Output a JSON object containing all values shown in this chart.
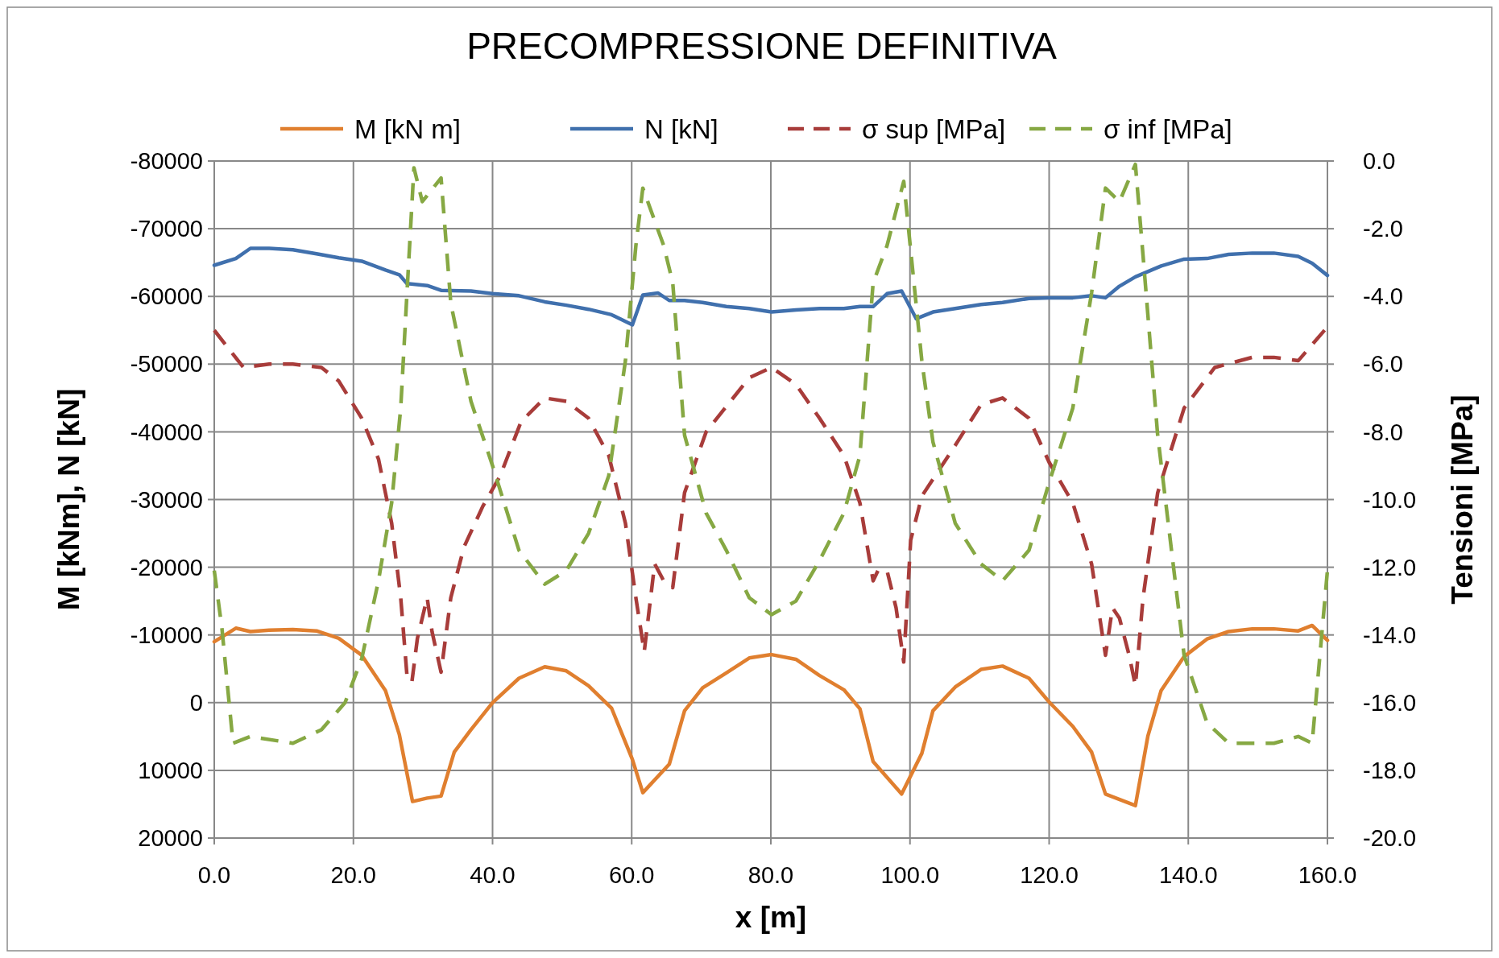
{
  "chart_data": {
    "type": "line",
    "title": "PRECOMPRESSIONE DEFINITIVA",
    "xlabel": "x [m]",
    "ylabel": "M [kNm], N [kN]",
    "y2label": "Tensioni [MPa]",
    "xlim": [
      0,
      160
    ],
    "xticks": [
      {
        "value": 0,
        "label": "0.0"
      },
      {
        "value": 20,
        "label": "20.0"
      },
      {
        "value": 40,
        "label": "40.0"
      },
      {
        "value": 60,
        "label": "60.0"
      },
      {
        "value": 80,
        "label": "80.0"
      },
      {
        "value": 100,
        "label": "100.0"
      },
      {
        "value": 120,
        "label": "120.0"
      },
      {
        "value": 140,
        "label": "140.0"
      },
      {
        "value": 160,
        "label": "160.0"
      }
    ],
    "ylim": [
      20000,
      -80000
    ],
    "yticks": [
      -80000,
      -70000,
      -60000,
      -50000,
      -40000,
      -30000,
      -20000,
      -10000,
      0,
      10000,
      20000
    ],
    "y2lim": [
      -20,
      0
    ],
    "y2ticks": [
      {
        "value": 0,
        "label": "0.0"
      },
      {
        "value": -2,
        "label": "-2.0"
      },
      {
        "value": -4,
        "label": "-4.0"
      },
      {
        "value": -6,
        "label": "-6.0"
      },
      {
        "value": -8,
        "label": "-8.0"
      },
      {
        "value": -10,
        "label": "-10.0"
      },
      {
        "value": -12,
        "label": "-12.0"
      },
      {
        "value": -14,
        "label": "-14.0"
      },
      {
        "value": -16,
        "label": "-16.0"
      },
      {
        "value": -18,
        "label": "-18.0"
      },
      {
        "value": -20,
        "label": "-20.0"
      }
    ],
    "grid": true,
    "legend": "top",
    "marker": "none",
    "series": [
      {
        "name": "M [kN m]",
        "color": "#e07f2f",
        "line_style": "solid",
        "x": [
          0,
          3.1,
          5.2,
          7.9,
          11.3,
          14.7,
          17.9,
          21.2,
          24.6,
          26.6,
          28.5,
          30.6,
          32.6,
          34.5,
          36.9,
          40,
          43.8,
          47.5,
          50.6,
          53.8,
          57.1,
          60.1,
          61.6,
          65.4,
          67.6,
          70.2,
          73.6,
          76.9,
          80.1,
          83.6,
          87,
          90.5,
          92.8,
          94.7,
          98.8,
          101.7,
          103.3,
          106.5,
          110.2,
          113.3,
          117.1,
          120,
          123.4,
          126.1,
          128.1,
          132.4,
          134.2,
          136.1,
          139.4,
          142.7,
          145.8,
          149.2,
          152.3,
          155.8,
          157.8,
          160
        ],
        "values": [
          -9000,
          -11000,
          -10500,
          -10700,
          -10800,
          -10600,
          -9500,
          -7000,
          -1800,
          4700,
          14600,
          14100,
          13800,
          7300,
          4000,
          0,
          -3600,
          -5300,
          -4700,
          -2500,
          800,
          8400,
          13300,
          9100,
          1200,
          -2200,
          -4400,
          -6600,
          -7100,
          -6400,
          -4000,
          -1900,
          900,
          8700,
          13500,
          7500,
          1200,
          -2300,
          -4900,
          -5400,
          -3600,
          -100,
          3500,
          7300,
          13500,
          15200,
          4900,
          -1800,
          -6800,
          -9400,
          -10500,
          -10900,
          -10900,
          -10600,
          -11400,
          -9200
        ]
      },
      {
        "name": "N [kN]",
        "color": "#4070ad",
        "line_style": "solid",
        "x": [
          0,
          3.1,
          5.2,
          7.9,
          11.3,
          14.7,
          17.9,
          21.2,
          24.6,
          26.6,
          27.7,
          30.6,
          32.6,
          36.9,
          40,
          43.8,
          47.5,
          50.6,
          53.8,
          57.1,
          60.1,
          61.6,
          63.8,
          65.4,
          67.6,
          70.2,
          73.6,
          76.9,
          80.1,
          83.6,
          87,
          90.5,
          92.8,
          94.7,
          96.7,
          98.8,
          100.9,
          103.3,
          106.5,
          110.2,
          113.3,
          117.1,
          120,
          123.4,
          126.1,
          128.1,
          130.1,
          132.4,
          136.1,
          139.4,
          142.7,
          145.8,
          149.2,
          152.3,
          155.8,
          157.8,
          160
        ],
        "values": [
          -64600,
          -65600,
          -67100,
          -67100,
          -66900,
          -66300,
          -65700,
          -65200,
          -63900,
          -63200,
          -61900,
          -61600,
          -60900,
          -60800,
          -60400,
          -60100,
          -59200,
          -58700,
          -58100,
          -57300,
          -55800,
          -60200,
          -60500,
          -59400,
          -59400,
          -59100,
          -58500,
          -58200,
          -57700,
          -58000,
          -58200,
          -58200,
          -58500,
          -58500,
          -60400,
          -60800,
          -56700,
          -57700,
          -58200,
          -58800,
          -59100,
          -59700,
          -59800,
          -59800,
          -60100,
          -59800,
          -61500,
          -62900,
          -64500,
          -65500,
          -65600,
          -66200,
          -66400,
          -66400,
          -65900,
          -64900,
          -63100
        ]
      },
      {
        "name": "σ sup [MPa]",
        "color": "#a83c3a",
        "line_style": "dashed",
        "axis": "y2",
        "x": [
          0,
          4.2,
          7.9,
          11.3,
          15.4,
          17.9,
          21.2,
          23.6,
          25.5,
          26.8,
          27.7,
          28.4,
          29.2,
          30.6,
          31.3,
          32.6,
          34.0,
          35.9,
          38.6,
          41.1,
          44.1,
          47.5,
          50.6,
          53.8,
          56.7,
          59.1,
          60.6,
          61.8,
          63.3,
          64.6,
          65.9,
          67.6,
          70.7,
          76.9,
          80.1,
          83.6,
          87,
          90.5,
          92.8,
          94.7,
          95.4,
          96.7,
          98.0,
          99.1,
          100.1,
          101.7,
          106.5,
          110.2,
          113.3,
          117.1,
          120,
          123.4,
          126.1,
          128.1,
          129.1,
          130.1,
          131.5,
          132.4,
          133.5,
          135.6,
          139.4,
          143.8,
          149.2,
          152.3,
          155.8,
          160
        ],
        "values": [
          -5.0,
          -6.1,
          -6.0,
          -6.0,
          -6.1,
          -6.5,
          -7.6,
          -8.8,
          -10.7,
          -12.9,
          -15.2,
          -15.4,
          -14.1,
          -12.9,
          -13.9,
          -15.1,
          -12.9,
          -11.4,
          -10.2,
          -9.3,
          -7.7,
          -7.0,
          -7.1,
          -7.6,
          -8.7,
          -10.7,
          -12.9,
          -14.5,
          -11.9,
          -12.4,
          -12.6,
          -9.8,
          -8.0,
          -6.4,
          -6.1,
          -6.6,
          -7.6,
          -8.7,
          -10.1,
          -12.4,
          -12.1,
          -12.1,
          -13.2,
          -14.8,
          -11.2,
          -9.9,
          -8.4,
          -7.2,
          -7.0,
          -7.6,
          -8.9,
          -10.1,
          -11.9,
          -14.6,
          -13.2,
          -13.5,
          -14.6,
          -15.5,
          -12.9,
          -9.8,
          -7.3,
          -6.1,
          -5.8,
          -5.8,
          -5.9,
          -4.9
        ]
      },
      {
        "name": "σ inf [MPa]",
        "color": "#86a843",
        "line_style": "dashed",
        "axis": "y2",
        "x": [
          0,
          1.1,
          2.7,
          5.2,
          11.3,
          15.4,
          18.8,
          21.2,
          23.6,
          25.5,
          26.8,
          27.7,
          28.7,
          29.9,
          32.6,
          34.0,
          36.9,
          40,
          43.8,
          47.5,
          50.6,
          53.8,
          56.7,
          59.1,
          60.6,
          61.6,
          64.6,
          65.9,
          67.6,
          70.7,
          73.6,
          76.9,
          80.1,
          83.6,
          87,
          90.5,
          92.8,
          94.7,
          96.7,
          99.1,
          101.7,
          103.3,
          106.5,
          110.2,
          113.3,
          117.1,
          120,
          123.4,
          126.1,
          128.1,
          130.1,
          132.4,
          133.5,
          135.6,
          139.4,
          142.7,
          145.8,
          149.2,
          152.3,
          155.8,
          157.8,
          160
        ],
        "values": [
          -12.1,
          -13.8,
          -17.2,
          -17.0,
          -17.2,
          -16.8,
          -16.0,
          -14.7,
          -12.4,
          -10.1,
          -7.3,
          -3.9,
          -0.2,
          -1.2,
          -0.5,
          -4.2,
          -7.1,
          -9.0,
          -11.5,
          -12.5,
          -12.1,
          -11.0,
          -9.3,
          -5.9,
          -2.5,
          -0.8,
          -2.5,
          -3.6,
          -8.1,
          -10.4,
          -11.5,
          -12.9,
          -13.4,
          -13.0,
          -11.8,
          -10.4,
          -8.7,
          -3.6,
          -2.5,
          -0.6,
          -5.9,
          -8.3,
          -10.7,
          -11.9,
          -12.4,
          -11.5,
          -9.5,
          -7.3,
          -3.9,
          -0.8,
          -1.2,
          -0.1,
          -2.8,
          -8.1,
          -14.6,
          -16.6,
          -17.2,
          -17.2,
          -17.2,
          -17.0,
          -17.2,
          -12.1
        ]
      }
    ]
  }
}
